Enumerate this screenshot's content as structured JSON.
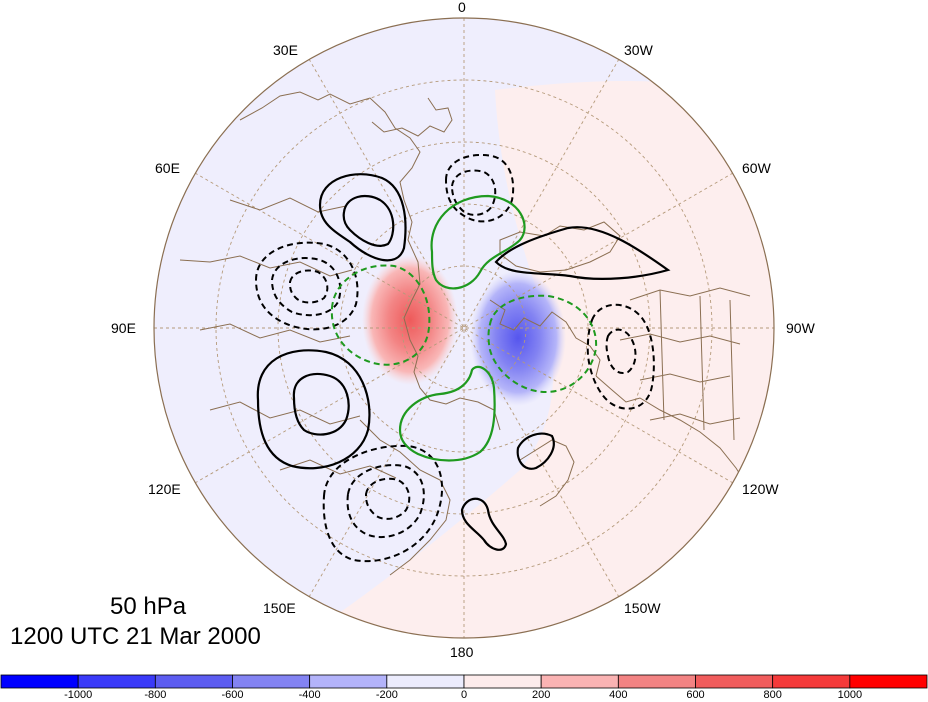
{
  "title": {
    "level": "50 hPa",
    "datetime": "1200 UTC 21 Mar 2000"
  },
  "longitude_labels": {
    "lon_0": "0",
    "lon_30w": "30W",
    "lon_60w": "60W",
    "lon_90w": "90W",
    "lon_120w": "120W",
    "lon_150w": "150W",
    "lon_180": "180",
    "lon_150e": "150E",
    "lon_120e": "120E",
    "lon_90e": "90E",
    "lon_60e": "60E",
    "lon_30e": "30E"
  },
  "colorbar": {
    "colors": [
      "#0000ff",
      "#3a3af8",
      "#5c5cf0",
      "#8383f2",
      "#b3b3fa",
      "#ececfd",
      "#fdecec",
      "#fab3b3",
      "#f28383",
      "#f05c5c",
      "#f43a3a",
      "#ff0000"
    ],
    "tick_labels": [
      "-1000",
      "-800",
      "-600",
      "-400",
      "-200",
      "0",
      "200",
      "400",
      "600",
      "800",
      "1000"
    ]
  },
  "colors": {
    "coastline": "#8b6f52",
    "graticule": "#b59a7a",
    "positive_contour": "#000000",
    "negative_contour": "#000000",
    "green_contour": "#1f9a1f",
    "positive_anomaly": "#f05c5c",
    "negative_anomaly": "#5c5cf0"
  }
}
